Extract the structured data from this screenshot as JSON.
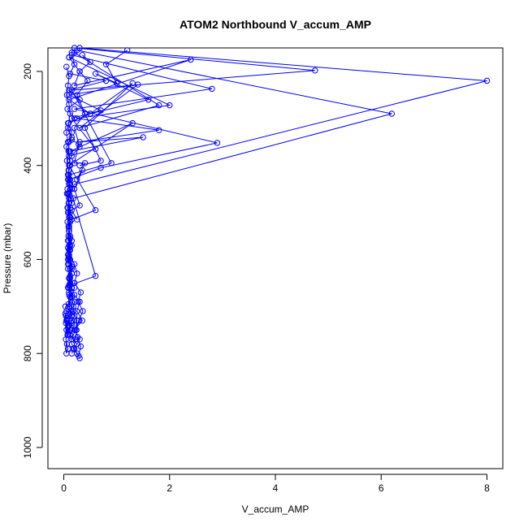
{
  "chart_data": {
    "type": "line",
    "title": "ATOM2 Northbound V_accum_AMP",
    "xlabel": "V_accum_AMP",
    "ylabel": "Pressure (mbar)",
    "xlim": [
      -0.3,
      8.3
    ],
    "ylim": [
      1045,
      150
    ],
    "y_reversed": true,
    "xticks": [
      0,
      2,
      4,
      6,
      8
    ],
    "yticks": [
      200,
      400,
      600,
      800,
      1000
    ],
    "grid": false,
    "legend": "none",
    "marker": "open-circle",
    "colors": {
      "series": "#0000ff",
      "axis": "#000000",
      "background": "#ffffff"
    },
    "series": [
      {
        "x": [
          0.15,
          0.2,
          0.12,
          0.8,
          0.1,
          0.3,
          0.07,
          0.2,
          0.08,
          0.15,
          0.05,
          0.1,
          0.12,
          0.08,
          0.1,
          0.06,
          0.09,
          0.12,
          0.07,
          0.1
        ],
        "y": [
          160,
          185,
          205,
          220,
          240,
          260,
          280,
          300,
          320,
          340,
          360,
          380,
          400,
          420,
          440,
          460,
          480,
          500,
          520,
          540
        ]
      },
      {
        "x": [
          0.1,
          0.3,
          0.2,
          2.4,
          0.1,
          0.5,
          0.08,
          0.15,
          0.1,
          0.09,
          0.12,
          0.1,
          0.08,
          0.15,
          0.1,
          0.07,
          0.12,
          0.1,
          0.09,
          0.12,
          0.1,
          0.08
        ],
        "y": [
          170,
          200,
          230,
          175,
          260,
          290,
          310,
          330,
          350,
          370,
          390,
          410,
          430,
          450,
          470,
          490,
          510,
          530,
          550,
          570,
          590,
          610
        ]
      },
      {
        "x": [
          0.2,
          4.75,
          0.15,
          0.9,
          0.1,
          0.12,
          0.08,
          0.1,
          0.09,
          0.12,
          0.1,
          0.15,
          0.1,
          0.08,
          0.12,
          0.1,
          0.15,
          0.12,
          0.1
        ],
        "y": [
          150,
          198,
          240,
          395,
          420,
          440,
          460,
          480,
          500,
          520,
          540,
          560,
          580,
          600,
          620,
          640,
          660,
          680,
          700
        ]
      },
      {
        "x": [
          0.3,
          8.0,
          0.2,
          0.1,
          0.15,
          0.08,
          0.12,
          0.1,
          0.09,
          0.1,
          0.12,
          0.08,
          0.1,
          0.2,
          0.15,
          0.1
        ],
        "y": [
          150,
          220,
          440,
          460,
          480,
          500,
          520,
          540,
          560,
          580,
          600,
          620,
          640,
          660,
          680,
          700
        ]
      },
      {
        "x": [
          0.25,
          6.2,
          0.18,
          0.12,
          0.1,
          0.09,
          0.12,
          0.1,
          0.08,
          0.1,
          0.15,
          0.12,
          0.1,
          0.2,
          0.18,
          0.25,
          0.22,
          0.15
        ],
        "y": [
          155,
          290,
          470,
          490,
          510,
          530,
          550,
          570,
          590,
          610,
          630,
          650,
          670,
          690,
          710,
          730,
          750,
          770
        ]
      },
      {
        "x": [
          0.15,
          2.8,
          0.2,
          2.9,
          0.7,
          0.1,
          0.12,
          0.1,
          0.08,
          0.12,
          0.1,
          0.09,
          0.15,
          0.1,
          0.2,
          0.25,
          0.2
        ],
        "y": [
          165,
          237,
          280,
          352,
          405,
          430,
          450,
          470,
          490,
          510,
          530,
          550,
          570,
          590,
          610,
          630,
          650
        ]
      },
      {
        "x": [
          0.1,
          2.0,
          0.25,
          1.8,
          0.3,
          1.5,
          0.12,
          1.3,
          0.1,
          0.6,
          0.15,
          0.1,
          0.12,
          0.08,
          0.1,
          0.15,
          0.12,
          0.1
        ],
        "y": [
          170,
          272,
          300,
          325,
          350,
          340,
          370,
          310,
          400,
          495,
          515,
          535,
          555,
          575,
          595,
          615,
          635,
          655
        ]
      },
      {
        "x": [
          0.2,
          1.8,
          0.3,
          1.4,
          0.1,
          0.7,
          0.15,
          0.6,
          0.1,
          0.12,
          0.08,
          0.1,
          0.6,
          0.12,
          0.1,
          0.09,
          0.12,
          0.15
        ],
        "y": [
          160,
          272,
          320,
          228,
          250,
          283,
          300,
          365,
          380,
          400,
          420,
          440,
          635,
          655,
          675,
          695,
          715,
          735
        ]
      },
      {
        "x": [
          0.05,
          0.1,
          0.08,
          0.06,
          0.1,
          0.12,
          0.09,
          0.05,
          0.08,
          0.1,
          0.06,
          0.09,
          0.12,
          0.07,
          0.1
        ],
        "y": [
          190,
          210,
          230,
          250,
          270,
          290,
          310,
          330,
          350,
          370,
          390,
          410,
          430,
          450,
          470
        ]
      },
      {
        "x": [
          0.35,
          0.5,
          0.3,
          0.45,
          0.25,
          0.4,
          0.2,
          0.3,
          0.15
        ],
        "y": [
          165,
          180,
          200,
          220,
          250,
          290,
          320,
          360,
          380
        ]
      },
      {
        "x": [
          1.2,
          0.8,
          1.0,
          0.6,
          1.6,
          0.5,
          1.3,
          0.4,
          0.7,
          0.3
        ],
        "y": [
          155,
          185,
          225,
          205,
          260,
          290,
          225,
          320,
          390,
          400
        ]
      },
      {
        "x": [
          0.08,
          0.12,
          0.1,
          0.15,
          0.12,
          0.1,
          0.15,
          0.18,
          0.12,
          0.2,
          0.15,
          0.1,
          0.12,
          0.08,
          0.05,
          0.08,
          0.1,
          0.12,
          0.15,
          0.2,
          0.25,
          0.3
        ],
        "y": [
          560,
          580,
          600,
          620,
          640,
          660,
          680,
          700,
          710,
          720,
          730,
          740,
          750,
          760,
          730,
          720,
          740,
          760,
          780,
          790,
          800,
          810
        ]
      },
      {
        "x": [
          0.1,
          0.08,
          0.12,
          0.1,
          0.15,
          0.2,
          0.12,
          0.25,
          0.15,
          0.3,
          0.2,
          0.35,
          0.25,
          0.3,
          0.2,
          0.15
        ],
        "y": [
          640,
          660,
          680,
          700,
          720,
          740,
          760,
          780,
          800,
          770,
          750,
          730,
          710,
          690,
          675,
          660
        ]
      },
      {
        "x": [
          0.03,
          0.05,
          0.04,
          0.06,
          0.08,
          0.05,
          0.07,
          0.04,
          0.06,
          0.08,
          0.05,
          0.03,
          0.06,
          0.04,
          0.08,
          0.1
        ],
        "y": [
          700,
          710,
          720,
          730,
          740,
          750,
          760,
          770,
          780,
          790,
          800,
          715,
          725,
          735,
          745,
          755
        ]
      },
      {
        "x": [
          0.15,
          0.28,
          0.2,
          0.4,
          0.25,
          0.35,
          0.2,
          0.3,
          0.15,
          0.25
        ],
        "y": [
          345,
          355,
          395,
          395,
          430,
          410,
          450,
          485,
          495,
          515
        ]
      },
      {
        "x": [
          0.2,
          0.32,
          0.27,
          0.36,
          0.28,
          0.24,
          0.22,
          0.18,
          0.28,
          0.32,
          0.26
        ],
        "y": [
          650,
          670,
          690,
          710,
          730,
          750,
          770,
          790,
          805,
          785,
          765
        ]
      }
    ]
  }
}
